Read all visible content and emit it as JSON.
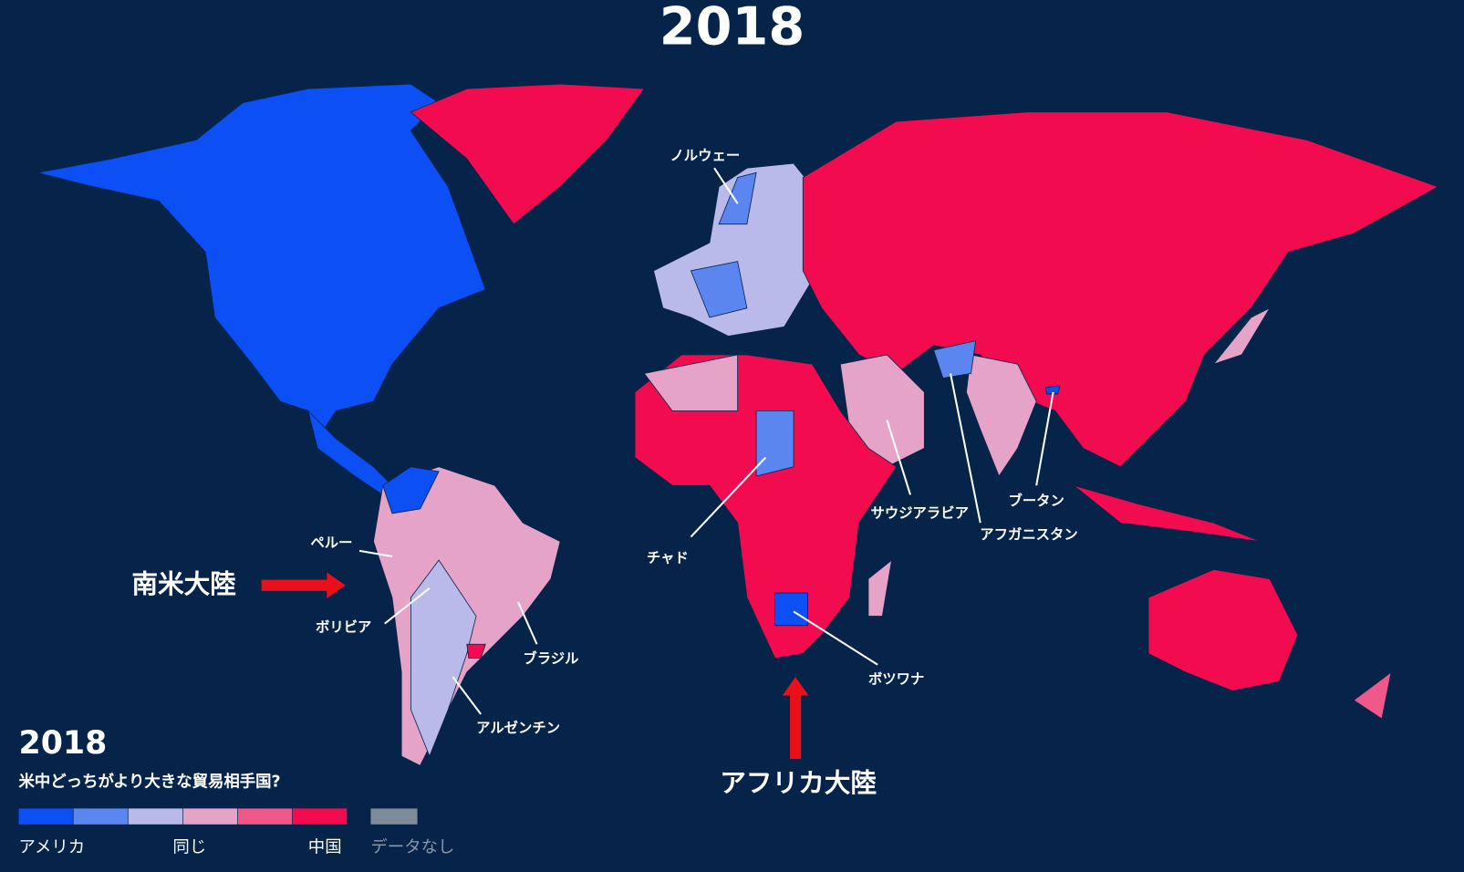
{
  "title": "2018",
  "country_labels": [
    "ノルウェー",
    "ペルー",
    "ボリビア",
    "ブラジル",
    "アルゼンチン",
    "チャド",
    "サウジアラビア",
    "アフガニスタン",
    "ブータン",
    "ボツワナ"
  ],
  "region_labels": [
    "南米大陸",
    "アフリカ大陸"
  ],
  "legend": {
    "title": "2018",
    "subtitle": "米中どっちがより大きな貿易相手国?",
    "colors": [
      "#0b4ff5",
      "#5b86f0",
      "#b9b9ea",
      "#e6a3c8",
      "#f0588a",
      "#f20c4f"
    ],
    "left_label": "アメリカ",
    "middle_label": "同じ",
    "right_label": "中国",
    "no_data": {
      "label": "データなし",
      "color": "#7d8b9a"
    }
  }
}
